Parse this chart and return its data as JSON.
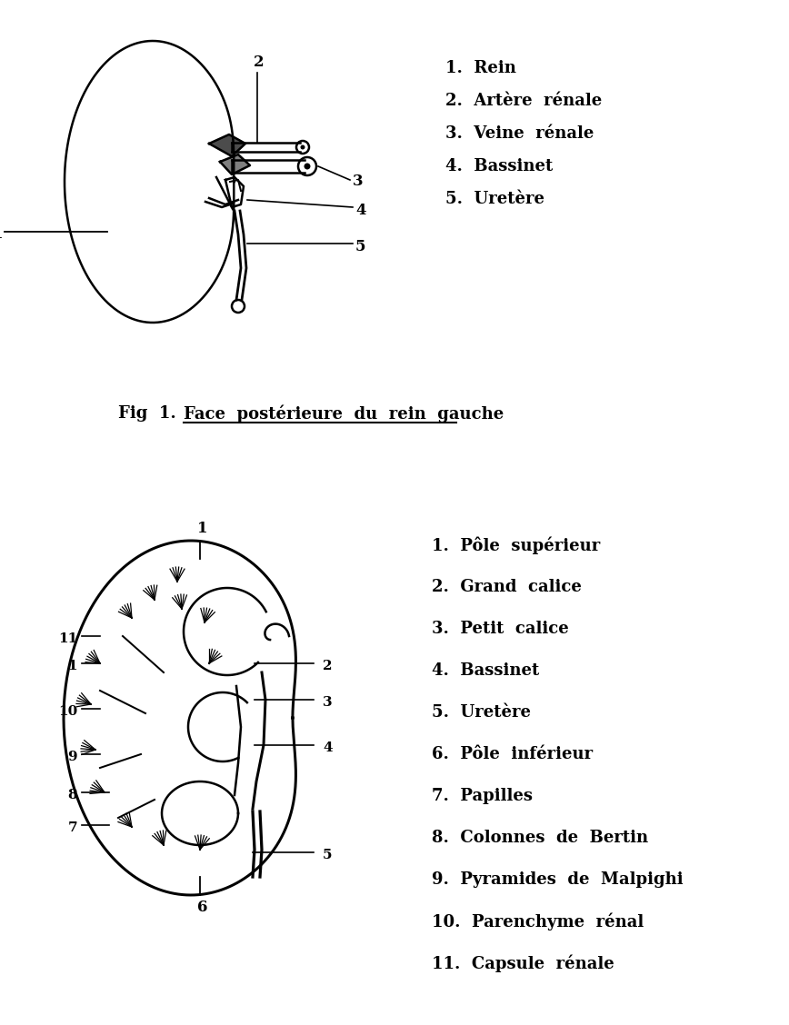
{
  "bg_color": "#ffffff",
  "top_legend": [
    [
      "1.",
      "Rein"
    ],
    [
      "2.",
      "Artère  rénale"
    ],
    [
      "3.",
      "Veine  rénale"
    ],
    [
      "4.",
      "Bassinet"
    ],
    [
      "5.",
      "Uretère"
    ]
  ],
  "bottom_legend": [
    [
      "1.",
      "Pôle  supérieur"
    ],
    [
      "2.",
      "Grand  calice"
    ],
    [
      "3.",
      "Petit  calice"
    ],
    [
      "4.",
      "Bassinet"
    ],
    [
      "5.",
      "Uretère"
    ],
    [
      "6.",
      "Pôle  inférieur"
    ],
    [
      "7.",
      "Papilles"
    ],
    [
      "8.",
      "Colonnes  de  Bertin"
    ],
    [
      "9.",
      "Pyramides  de  Malpighi"
    ],
    [
      "10.",
      "Parenchyme  rénal"
    ],
    [
      "11.",
      "Capsule  rénale"
    ]
  ],
  "fig_label_prefix": "Fig  1.",
  "fig_label_underlined": "Face  postérieure  du  rein  gauche"
}
